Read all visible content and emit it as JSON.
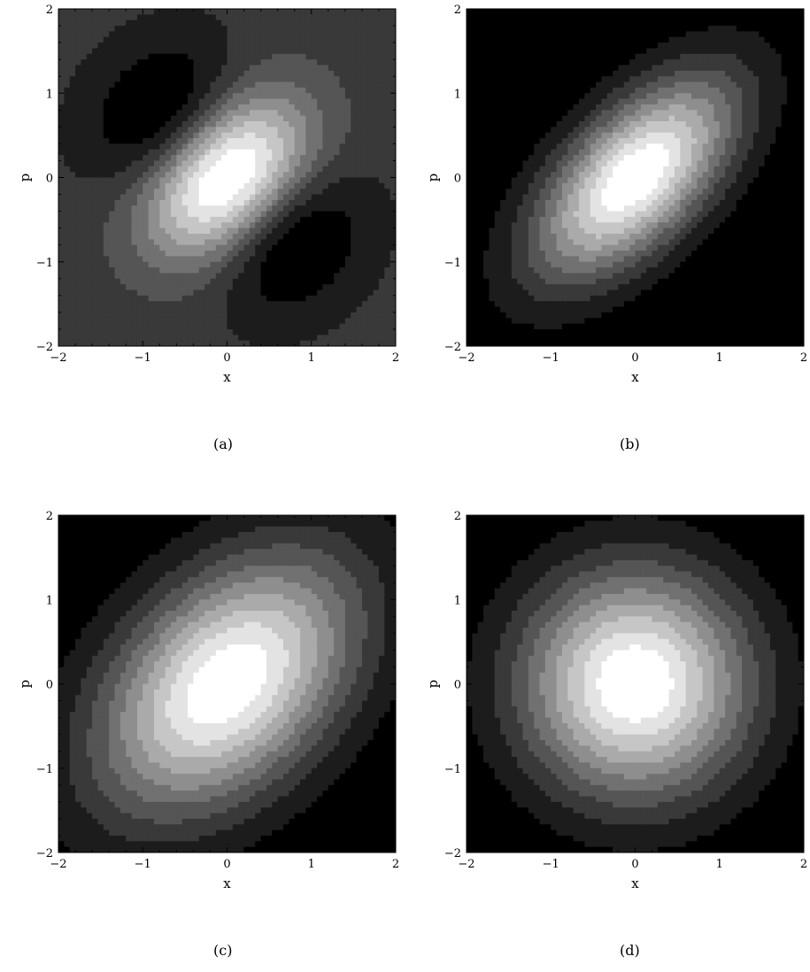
{
  "chart_data": [
    {
      "type": "heatmap",
      "panel": "a",
      "caption": "(a)",
      "title": "",
      "xlabel": "x",
      "ylabel": "p",
      "xlim": [
        -2,
        2
      ],
      "ylim": [
        -2,
        2
      ],
      "xticks": [
        -2,
        -1,
        0,
        1,
        2
      ],
      "yticks": [
        -2,
        -1,
        0,
        1,
        2
      ],
      "xtick_labels": [
        "−2",
        "−1",
        "0",
        "1",
        "2"
      ],
      "ytick_labels": [
        "−2",
        "−1",
        "0",
        "1",
        "2"
      ],
      "contour_levels": 10,
      "colormap": "grayscale",
      "features": [
        {
          "kind": "peak",
          "x": 0.0,
          "p": 0.0,
          "shade": "white"
        },
        {
          "kind": "trough",
          "x": -0.8,
          "p": 0.6,
          "shade": "black"
        },
        {
          "kind": "trough",
          "x": 0.8,
          "p": -0.6,
          "shade": "black"
        }
      ]
    },
    {
      "type": "heatmap",
      "panel": "b",
      "caption": "(b)",
      "title": "",
      "xlabel": "x",
      "ylabel": "p",
      "xlim": [
        -2,
        2
      ],
      "ylim": [
        -2,
        2
      ],
      "xticks": [
        -2,
        -1,
        0,
        1,
        2
      ],
      "yticks": [
        -2,
        -1,
        0,
        1,
        2
      ],
      "xtick_labels": [
        "−2",
        "−1",
        "0",
        "1",
        "2"
      ],
      "ytick_labels": [
        "−2",
        "−1",
        "0",
        "1",
        "2"
      ],
      "contour_levels": 10,
      "colormap": "grayscale",
      "features": [
        {
          "kind": "peak",
          "x": 0.0,
          "p": 0.0,
          "shade": "white",
          "elongation": "along x=p"
        }
      ]
    },
    {
      "type": "heatmap",
      "panel": "c",
      "caption": "(c)",
      "title": "",
      "xlabel": "x",
      "ylabel": "p",
      "xlim": [
        -2,
        2
      ],
      "ylim": [
        -2,
        2
      ],
      "xticks": [
        -2,
        -1,
        0,
        1,
        2
      ],
      "yticks": [
        -2,
        -1,
        0,
        1,
        2
      ],
      "xtick_labels": [
        "−2",
        "−1",
        "0",
        "1",
        "2"
      ],
      "ytick_labels": [
        "−2",
        "−1",
        "0",
        "1",
        "2"
      ],
      "contour_levels": 10,
      "colormap": "grayscale",
      "features": [
        {
          "kind": "peak",
          "x": 0.0,
          "p": 0.0,
          "shade": "white",
          "elongation": "along x=p"
        }
      ]
    },
    {
      "type": "heatmap",
      "panel": "d",
      "caption": "(d)",
      "title": "",
      "xlabel": "x",
      "ylabel": "p",
      "xlim": [
        -2,
        2
      ],
      "ylim": [
        -2,
        2
      ],
      "xticks": [
        -2,
        -1,
        0,
        1,
        2
      ],
      "yticks": [
        -2,
        -1,
        0,
        1,
        2
      ],
      "xtick_labels": [
        "−2",
        "−1",
        "0",
        "1",
        "2"
      ],
      "ytick_labels": [
        "−2",
        "−1",
        "0",
        "1",
        "2"
      ],
      "contour_levels": 10,
      "colormap": "grayscale",
      "features": [
        {
          "kind": "peak",
          "x": 0.0,
          "p": 0.0,
          "shade": "white",
          "elongation": "circular"
        }
      ]
    }
  ]
}
